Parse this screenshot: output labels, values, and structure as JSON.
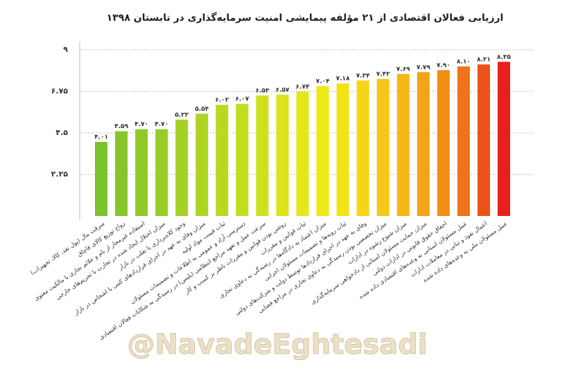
{
  "chart_data": {
    "type": "bar",
    "title": "ارزیابی فعالان اقتصادی از ۲۱ مؤلفه پیمایشی امنیت سرمایه‌گذاری در تابستان ۱۳۹۸",
    "watermark": "@NavadeEghtesadi",
    "categories": [
      "سرقت مال (پول نقد، کالا، تجهیزات)",
      "رواج توزیع کالای قاچاق",
      "استفاده غیرمجاز از نام و علائم تجاری یا مالکیت معنوی",
      "میزان اختلال ایجاد شده در تجارت با تحریم‌های خارجی",
      "وجود کلاه‌برداری یا تقلب در بازار",
      "میزان وفای به عهد در اجرای قراردادهای کتبی با اشخاص در بازار",
      "ثبات قیمت مواد اولیه",
      "دسترسی آزاد و عمومی به اطلاعات و تصمیمات مسئولان",
      "سرعت عمل و تعهد مراجع انتظامی (پلیس) در رسیدگی به شکایات فعالان اقتصادی",
      "روشن بودن قوانین و مقررات ناظر بر کسب و کار",
      "ثبات قوانین و مقررات",
      "میزان اعتماد به دادگاه‌ها در رسیدگی به دعاوی تجاری",
      "ثبات رویه‌ها و تصمیمات مسئولان اجرایی",
      "وفای به عهد در اجرای قراردادها توسط دولت و شرکت‌های دولتی",
      "میزان تخصصی بودن رسیدگی به دعاوی تجاری در مراجع قضایی",
      "میزان شیوع رشوه در ادارات",
      "میزان حمایت مسئولان استانی از دادخواهی سرمایه‌گذاری",
      "احقاق حقوق قانونی در ادارات دولتی",
      "عمل مسئولان استانی به وعده‌های اقتصادی داده شده",
      "اعمال نفوذ و تبانی در معاملات ادارات",
      "عمل مسئولان ملی به وعده‌های داده شده"
    ],
    "values": [
      4.01,
      4.59,
      4.7,
      4.7,
      5.22,
      5.54,
      6.02,
      6.07,
      6.53,
      6.57,
      6.74,
      7.04,
      7.18,
      7.34,
      7.42,
      7.69,
      7.79,
      7.9,
      8.1,
      8.21,
      8.35
    ],
    "value_labels": [
      "۴.۰۱",
      "۴.۵۹",
      "۴.۷۰",
      "۴.۷۰",
      "۵.۲۲",
      "۵.۵۴",
      "۶.۰۲",
      "۶.۰۷",
      "۶.۵۳",
      "۶.۵۷",
      "۶.۷۴",
      "۷.۰۴",
      "۷.۱۸",
      "۷.۳۴",
      "۷.۴۲",
      "۷.۶۹",
      "۷.۷۹",
      "۷.۹۰",
      "۸.۱۰",
      "۸.۲۱",
      "۸.۳۵"
    ],
    "colors": [
      "#7cc22a",
      "#86c628",
      "#8fca26",
      "#98cd25",
      "#a3d124",
      "#aed422",
      "#b9d820",
      "#c4dc1e",
      "#cfe01c",
      "#dae41a",
      "#e5e818",
      "#eeea17",
      "#f2e316",
      "#f4d616",
      "#f5c716",
      "#f5b616",
      "#f4a316",
      "#f28d16",
      "#ef7318",
      "#eb521a",
      "#e6201c"
    ],
    "ylim": [
      0,
      9
    ],
    "yticks": [
      {
        "value": 2.25,
        "label": "۲.۲۵"
      },
      {
        "value": 4.5,
        "label": "۴.۵"
      },
      {
        "value": 6.75,
        "label": "۶.۷۵"
      },
      {
        "value": 9,
        "label": "۹"
      }
    ],
    "grid": true
  }
}
